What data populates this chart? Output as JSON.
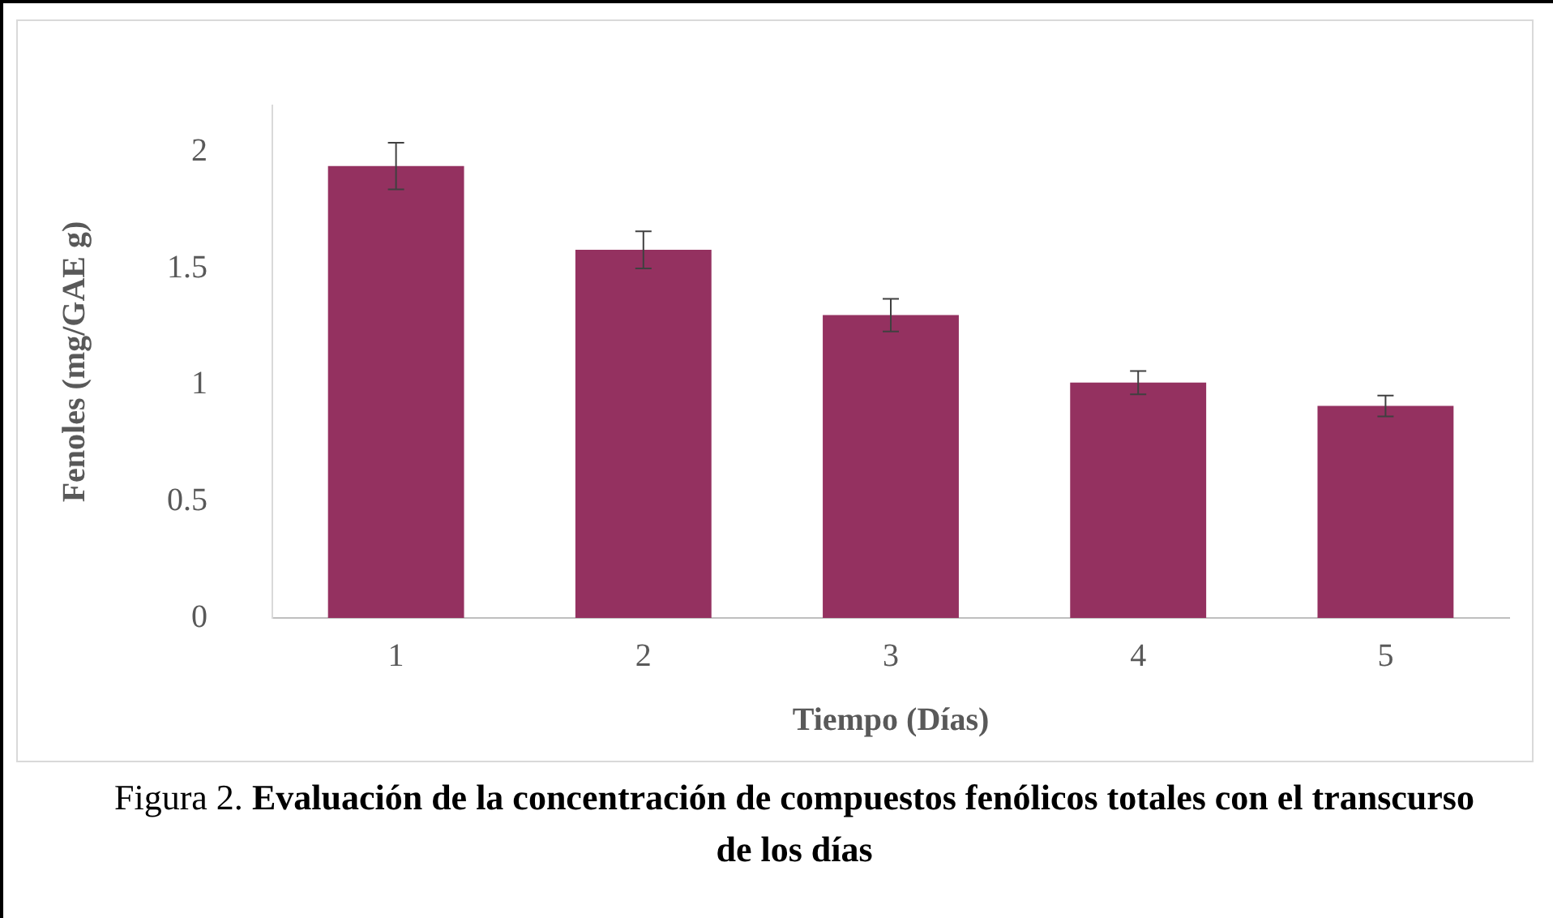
{
  "chart_data": {
    "type": "bar",
    "xlabel": "Tiempo (Días)",
    "ylabel": "Fenoles (mg/GAE g)",
    "categories": [
      "1",
      "2",
      "3",
      "4",
      "5"
    ],
    "values": [
      1.94,
      1.58,
      1.3,
      1.01,
      0.91
    ],
    "errors": [
      0.1,
      0.08,
      0.07,
      0.05,
      0.045
    ],
    "color": "#943160",
    "ylim": [
      0,
      2.2
    ],
    "yticks": [
      0,
      0.5,
      1,
      1.5,
      2
    ],
    "grid": false,
    "legend": false,
    "annotations": [
      "Figura 2.",
      "Evaluación de la concentración de compuestos fenólicos totales con el transcurso de los días"
    ]
  }
}
